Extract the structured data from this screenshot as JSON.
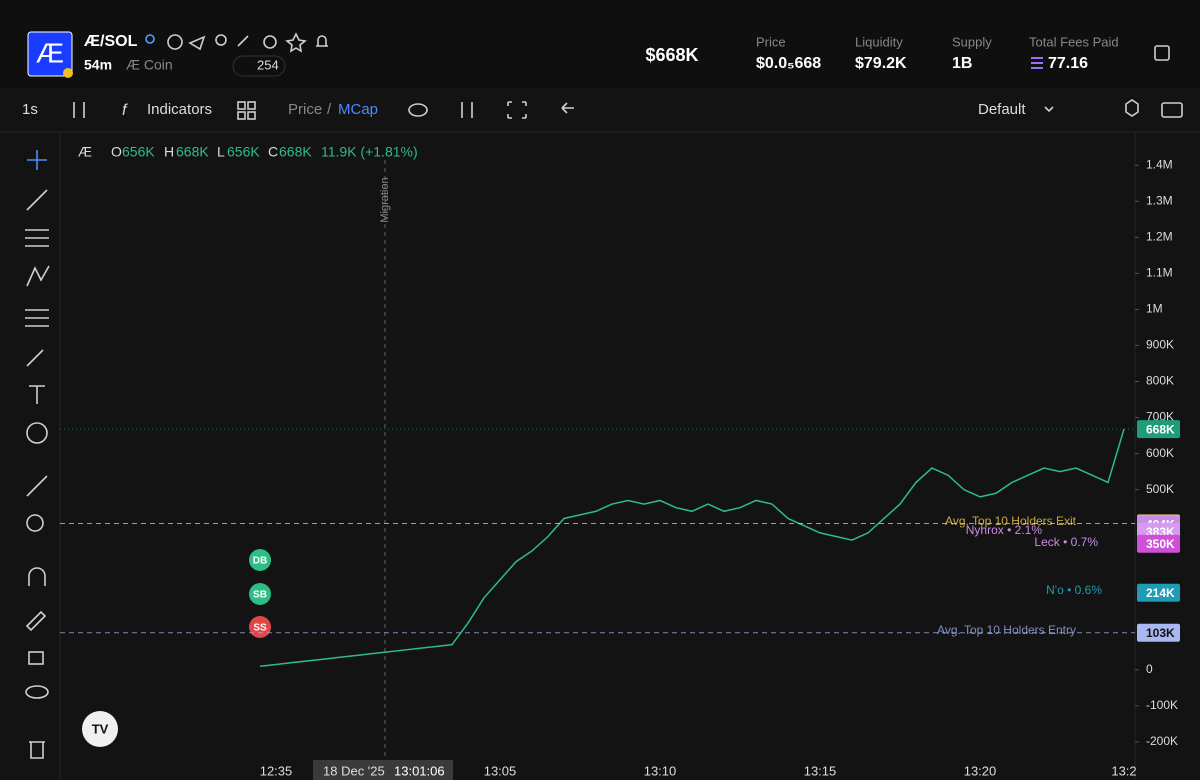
{
  "header": {
    "logo": "Æ",
    "pair": "Æ/SOL",
    "age": "54m",
    "name": "Æ Coin",
    "views": "254",
    "mcap": "$668K",
    "stats": [
      {
        "label": "Price",
        "value": "$0.0₅668"
      },
      {
        "label": "Liquidity",
        "value": "$79.2K"
      },
      {
        "label": "Supply",
        "value": "1B"
      },
      {
        "label": "Total Fees Paid",
        "value": "77.16"
      }
    ]
  },
  "toolbar": {
    "interval": "1s",
    "indicators": "Indicators",
    "price": "Price",
    "separator": "/",
    "mcap": "MCap",
    "layout": "Default"
  },
  "legend": {
    "symbol": "Æ",
    "o_label": "O",
    "o": "656K",
    "h_label": "H",
    "h": "668K",
    "l_label": "L",
    "l": "656K",
    "c_label": "C",
    "c": "668K",
    "change": "11.9K (+1.81%)"
  },
  "annotations": {
    "migration": "Migration",
    "exit": "Avg. Top 10 Holders Exit",
    "nyhrox": "Nyhrox • 2.1%",
    "leck": "Leck • 0.7%",
    "no": "N'o • 0.6%",
    "entry": "Avg. Top 10 Holders Entry"
  },
  "markers": [
    "DB",
    "SB",
    "SS"
  ],
  "crosshair": {
    "date": "18 Dec '25",
    "time": "13:01:06"
  },
  "chart_data": {
    "type": "line",
    "color": "#2ebd85",
    "categories": [
      null,
      "12:35",
      null,
      null,
      null,
      null,
      null,
      null,
      null,
      null,
      null,
      null,
      null,
      null,
      null,
      "13:05",
      null,
      null,
      null,
      null,
      null,
      null,
      null,
      null,
      null,
      "13:10",
      null,
      null,
      null,
      null,
      null,
      null,
      null,
      null,
      null,
      "13:15",
      null,
      null,
      null,
      null,
      null,
      null,
      null,
      null,
      null,
      "13:20",
      null,
      null,
      null,
      null,
      null,
      null,
      null,
      null,
      "13:2"
    ],
    "values": [
      10000,
      15000,
      20000,
      25000,
      30000,
      35000,
      40000,
      45000,
      50000,
      55000,
      60000,
      65000,
      70000,
      130000,
      200000,
      250000,
      300000,
      330000,
      370000,
      420000,
      430000,
      440000,
      460000,
      470000,
      460000,
      470000,
      450000,
      440000,
      460000,
      440000,
      450000,
      470000,
      460000,
      420000,
      400000,
      380000,
      370000,
      360000,
      380000,
      420000,
      460000,
      520000,
      560000,
      540000,
      500000,
      480000,
      490000,
      520000,
      540000,
      560000,
      550000,
      560000,
      540000,
      520000,
      668000
    ],
    "ylim": [
      -250000,
      1470000
    ],
    "yticks": [
      {
        "value": 1400000,
        "label": "1.4M"
      },
      {
        "value": 1300000,
        "label": "1.3M"
      },
      {
        "value": 1200000,
        "label": "1.2M"
      },
      {
        "value": 1100000,
        "label": "1.1M"
      },
      {
        "value": 1000000,
        "label": "1M"
      },
      {
        "value": 900000,
        "label": "900K"
      },
      {
        "value": 800000,
        "label": "800K"
      },
      {
        "value": 700000,
        "label": "700K"
      },
      {
        "value": 600000,
        "label": "600K"
      },
      {
        "value": 500000,
        "label": "500K"
      },
      0,
      {
        "value": -100000,
        "label": "-100K"
      },
      {
        "value": -200000,
        "label": "-200K"
      }
    ],
    "price_tags": {
      "values": [
        668000,
        406000,
        404000,
        383000,
        350000,
        214000,
        103000
      ],
      "value_labels": [
        "668K",
        "406K",
        "404K",
        "383K",
        "350K",
        "214K",
        "103K"
      ],
      "colors": [
        "#1f9d7a",
        "#f7dc8f",
        "#c98de8",
        "#d49bf0",
        "#d04fd8",
        "#1e9bb5",
        "#a9b8f0"
      ]
    }
  }
}
